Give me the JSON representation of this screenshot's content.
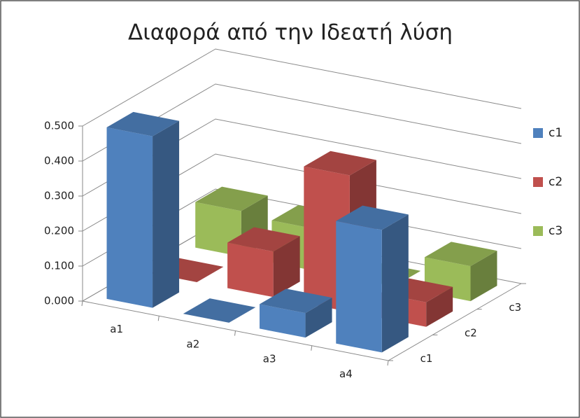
{
  "chart_data": {
    "type": "bar3d",
    "title": "Διαφορά από την Ιδεατή λύση",
    "categories": [
      "a1",
      "a2",
      "a3",
      "a4"
    ],
    "series": [
      {
        "name": "c1",
        "color": "#4f81bd",
        "values": [
          0.49,
          0,
          0.07,
          0.35
        ]
      },
      {
        "name": "c2",
        "color": "#c0504d",
        "values": [
          0,
          0.13,
          0.39,
          0.07
        ]
      },
      {
        "name": "c3",
        "color": "#9bbb59",
        "values": [
          0.13,
          0.12,
          0,
          0.1
        ]
      }
    ],
    "ylim": [
      0,
      0.5
    ],
    "yticks": [
      {
        "value": 0,
        "label": "0.000"
      },
      {
        "value": 0.1,
        "label": "0.100"
      },
      {
        "value": 0.2,
        "label": "0.200"
      },
      {
        "value": 0.3,
        "label": "0.300"
      },
      {
        "value": 0.4,
        "label": "0.400"
      },
      {
        "value": 0.5,
        "label": "0.500"
      }
    ],
    "grid": true,
    "legend": "right"
  }
}
